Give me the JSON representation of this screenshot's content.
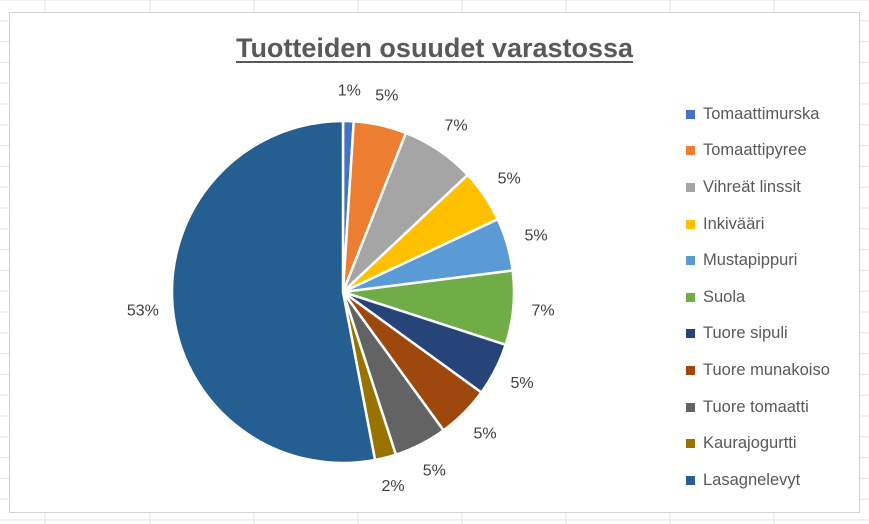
{
  "chart_data": {
    "type": "pie",
    "title": "Tuotteiden osuudet varastossa",
    "legend_position": "right",
    "start_angle": "12 o'clock",
    "direction": "clockwise",
    "slices": [
      {
        "label": "Tomaattimurska",
        "value": 1,
        "display": "1%",
        "color": "#4472C4"
      },
      {
        "label": "Tomaattipyree",
        "value": 5,
        "display": "5%",
        "color": "#ED7D31"
      },
      {
        "label": "Vihreät linssit",
        "value": 7,
        "display": "7%",
        "color": "#A5A5A5"
      },
      {
        "label": "Inkivääri",
        "value": 5,
        "display": "5%",
        "color": "#FFC000"
      },
      {
        "label": "Mustapippuri",
        "value": 5,
        "display": "5%",
        "color": "#5B9BD5"
      },
      {
        "label": "Suola",
        "value": 7,
        "display": "7%",
        "color": "#70AD47"
      },
      {
        "label": "Tuore sipuli",
        "value": 5,
        "display": "5%",
        "color": "#264478"
      },
      {
        "label": "Tuore munakoiso",
        "value": 5,
        "display": "5%",
        "color": "#9E480E"
      },
      {
        "label": "Tuore tomaatti",
        "value": 5,
        "display": "5%",
        "color": "#636363"
      },
      {
        "label": "Kaurajogurtti",
        "value": 2,
        "display": "2%",
        "color": "#997300"
      },
      {
        "label": "Lasagnelevyt",
        "value": 53,
        "display": "53%",
        "color": "#255E91"
      }
    ]
  }
}
